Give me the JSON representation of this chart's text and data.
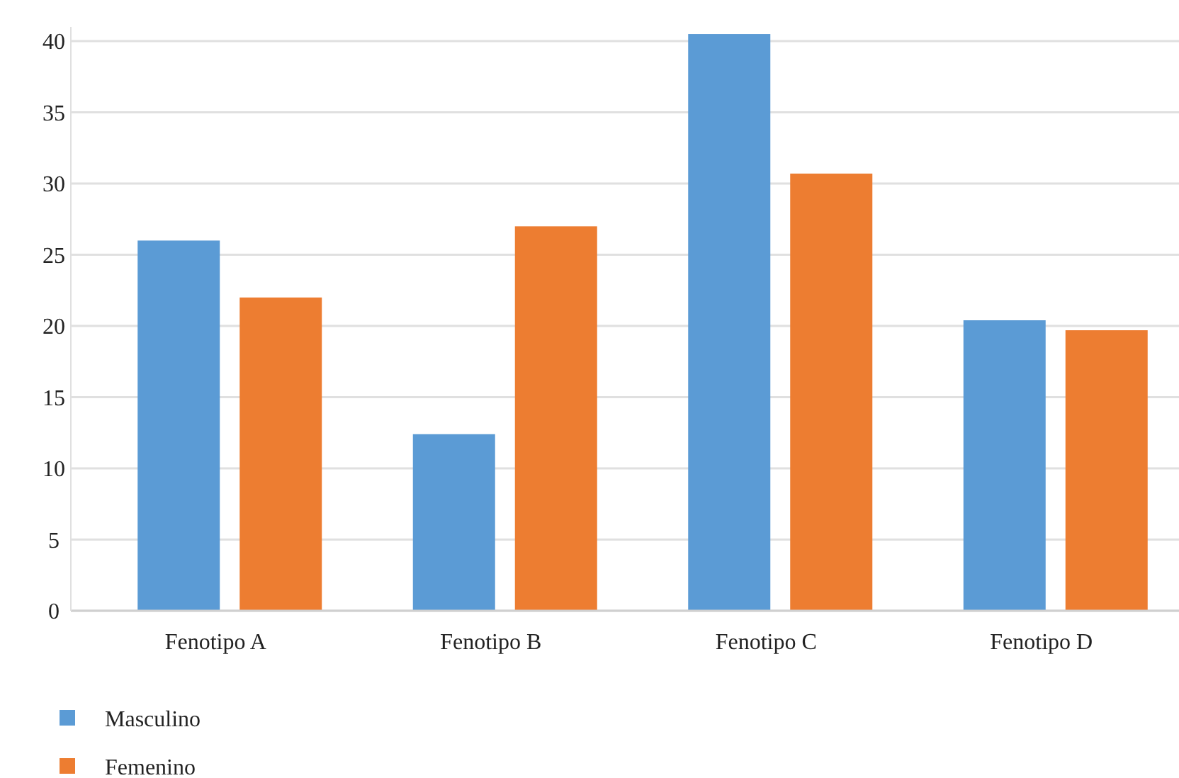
{
  "chart_data": {
    "type": "bar",
    "categories": [
      "Fenotipo A",
      "Fenotipo B",
      "Fenotipo C",
      "Fenotipo D"
    ],
    "series": [
      {
        "name": "Masculino",
        "color": "#5b9bd5",
        "values": [
          26,
          12.4,
          40.5,
          20.4
        ]
      },
      {
        "name": "Femenino",
        "color": "#ed7d31",
        "values": [
          22,
          27,
          30.7,
          19.7
        ]
      }
    ],
    "ylim": [
      0,
      41
    ],
    "yticks": [
      0,
      5,
      10,
      15,
      20,
      25,
      30,
      35,
      40
    ],
    "grid": "y",
    "legend": "bottom left"
  }
}
